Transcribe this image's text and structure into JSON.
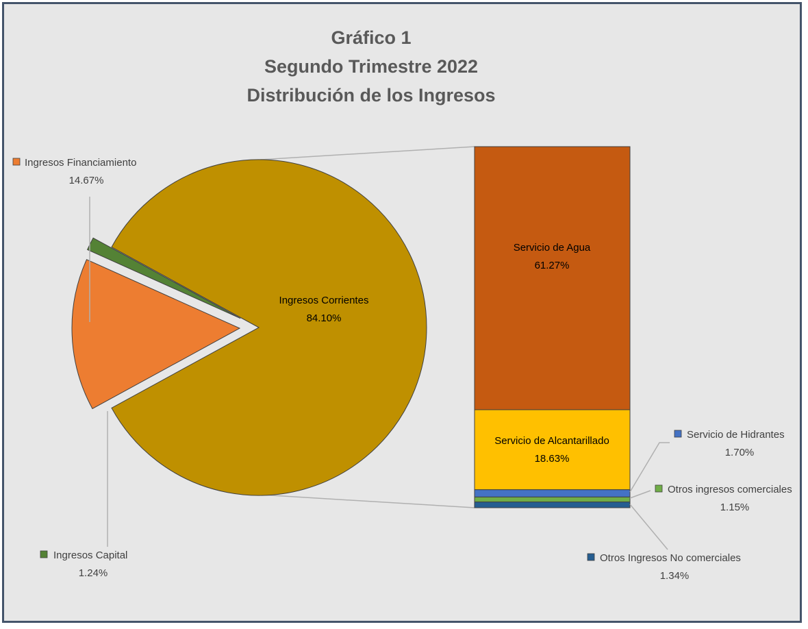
{
  "chart_data": {
    "type": "pie-of-bar",
    "title_lines": [
      "Gráfico 1",
      "Segundo Trimestre 2022",
      "Distribución de los Ingresos"
    ],
    "pie": {
      "slices": [
        {
          "name": "Ingresos Corrientes",
          "value": 84.1,
          "label": "84.10%",
          "color": "#bf9000"
        },
        {
          "name": "Ingresos Financiamiento",
          "value": 14.67,
          "label": "14.67%",
          "color": "#ed7d31"
        },
        {
          "name": "Ingresos Capital",
          "value": 1.24,
          "label": "1.24%",
          "color": "#548235"
        }
      ]
    },
    "bar": {
      "segments": [
        {
          "name": "Servicio de Agua",
          "value": 61.27,
          "label": "61.27%",
          "color": "#c55a11"
        },
        {
          "name": "Servicio de Alcantarillado",
          "value": 18.63,
          "label": "18.63%",
          "color": "#ffc000"
        },
        {
          "name": "Servicio de Hidrantes",
          "value": 1.7,
          "label": "1.70%",
          "color": "#4472c4"
        },
        {
          "name": "Otros ingresos comerciales",
          "value": 1.15,
          "label": "1.15%",
          "color": "#70ad47"
        },
        {
          "name": "Otros Ingresos No comerciales",
          "value": 1.34,
          "label": "1.34%",
          "color": "#255e91"
        }
      ]
    }
  }
}
